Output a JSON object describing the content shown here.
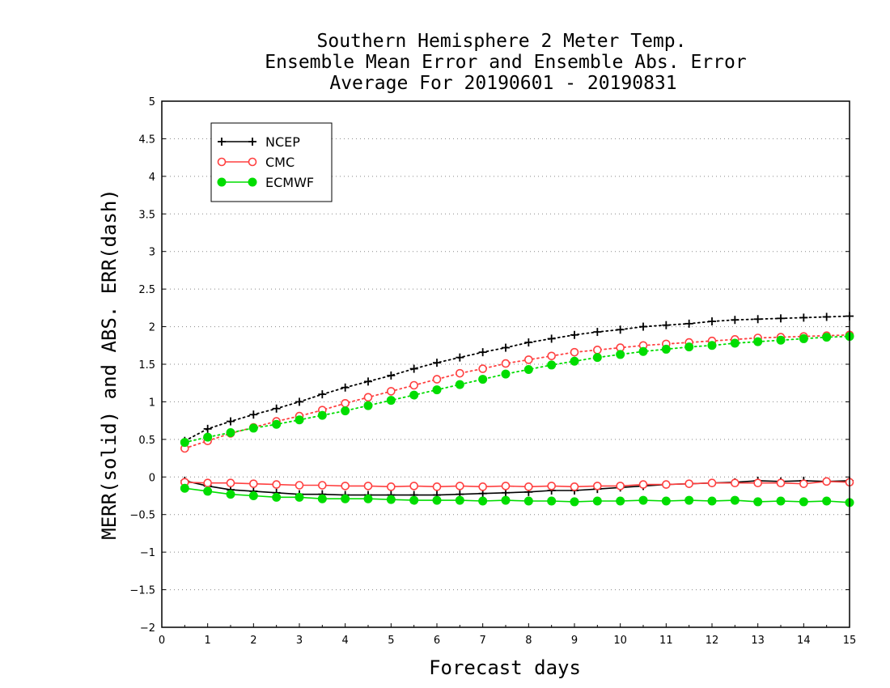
{
  "chart_data": {
    "type": "line",
    "title": [
      "Southern Hemisphere 2 Meter Temp.",
      "Ensemble Mean Error and Ensemble Abs. Error",
      "Average For 20190601 - 20190831"
    ],
    "xlabel": "Forecast days",
    "ylabel": "MERR(solid) and ABS. ERR(dash)",
    "xlim": [
      0,
      15
    ],
    "ylim": [
      -2,
      5
    ],
    "xticks": [
      "0",
      "1",
      "2",
      "3",
      "4",
      "5",
      "6",
      "7",
      "8",
      "9",
      "10",
      "11",
      "12",
      "13",
      "14",
      "15"
    ],
    "yticks": [
      "−2",
      "−1.5",
      "−1",
      "−0.5",
      "0",
      "0.5",
      "1",
      "1.5",
      "2",
      "2.5",
      "3",
      "3.5",
      "4",
      "4.5",
      "5"
    ],
    "grid": true,
    "legend_position": "top-left",
    "x": [
      0.5,
      1,
      1.5,
      2,
      2.5,
      3,
      3.5,
      4,
      4.5,
      5,
      5.5,
      6,
      6.5,
      7,
      7.5,
      8,
      8.5,
      9,
      9.5,
      10,
      10.5,
      11,
      11.5,
      12,
      12.5,
      13,
      13.5,
      14,
      14.5,
      15
    ],
    "series": [
      {
        "name": "NCEP",
        "color": "#000000",
        "marker": "plus",
        "merr": [
          -0.05,
          -0.12,
          -0.17,
          -0.19,
          -0.21,
          -0.23,
          -0.23,
          -0.24,
          -0.24,
          -0.24,
          -0.24,
          -0.24,
          -0.23,
          -0.22,
          -0.21,
          -0.2,
          -0.18,
          -0.18,
          -0.16,
          -0.14,
          -0.12,
          -0.1,
          -0.09,
          -0.08,
          -0.07,
          -0.05,
          -0.06,
          -0.05,
          -0.06,
          -0.05
        ],
        "abs_err": [
          0.48,
          0.64,
          0.74,
          0.83,
          0.91,
          1.0,
          1.1,
          1.19,
          1.27,
          1.35,
          1.44,
          1.52,
          1.59,
          1.66,
          1.72,
          1.79,
          1.84,
          1.89,
          1.93,
          1.96,
          2.0,
          2.02,
          2.04,
          2.07,
          2.09,
          2.1,
          2.11,
          2.12,
          2.13,
          2.14
        ]
      },
      {
        "name": "CMC",
        "color": "#ff4040",
        "marker": "open-circle",
        "merr": [
          -0.07,
          -0.08,
          -0.08,
          -0.09,
          -0.1,
          -0.11,
          -0.11,
          -0.12,
          -0.12,
          -0.13,
          -0.12,
          -0.13,
          -0.12,
          -0.13,
          -0.12,
          -0.13,
          -0.12,
          -0.13,
          -0.12,
          -0.12,
          -0.1,
          -0.1,
          -0.09,
          -0.08,
          -0.08,
          -0.08,
          -0.08,
          -0.09,
          -0.06,
          -0.07
        ],
        "abs_err": [
          0.38,
          0.48,
          0.58,
          0.66,
          0.74,
          0.81,
          0.89,
          0.98,
          1.06,
          1.14,
          1.22,
          1.3,
          1.38,
          1.44,
          1.51,
          1.56,
          1.61,
          1.66,
          1.69,
          1.72,
          1.75,
          1.77,
          1.79,
          1.81,
          1.83,
          1.85,
          1.86,
          1.87,
          1.88,
          1.89
        ]
      },
      {
        "name": "ECMWF",
        "color": "#00dd00",
        "marker": "filled-circle",
        "merr": [
          -0.15,
          -0.19,
          -0.23,
          -0.25,
          -0.27,
          -0.27,
          -0.29,
          -0.29,
          -0.29,
          -0.3,
          -0.31,
          -0.31,
          -0.31,
          -0.32,
          -0.31,
          -0.32,
          -0.32,
          -0.33,
          -0.32,
          -0.32,
          -0.31,
          -0.32,
          -0.31,
          -0.32,
          -0.31,
          -0.33,
          -0.32,
          -0.33,
          -0.32,
          -0.34
        ],
        "abs_err": [
          0.46,
          0.53,
          0.59,
          0.65,
          0.7,
          0.76,
          0.82,
          0.88,
          0.95,
          1.02,
          1.09,
          1.16,
          1.23,
          1.3,
          1.37,
          1.43,
          1.49,
          1.54,
          1.59,
          1.63,
          1.67,
          1.7,
          1.73,
          1.75,
          1.78,
          1.8,
          1.82,
          1.84,
          1.86,
          1.87
        ]
      }
    ]
  }
}
